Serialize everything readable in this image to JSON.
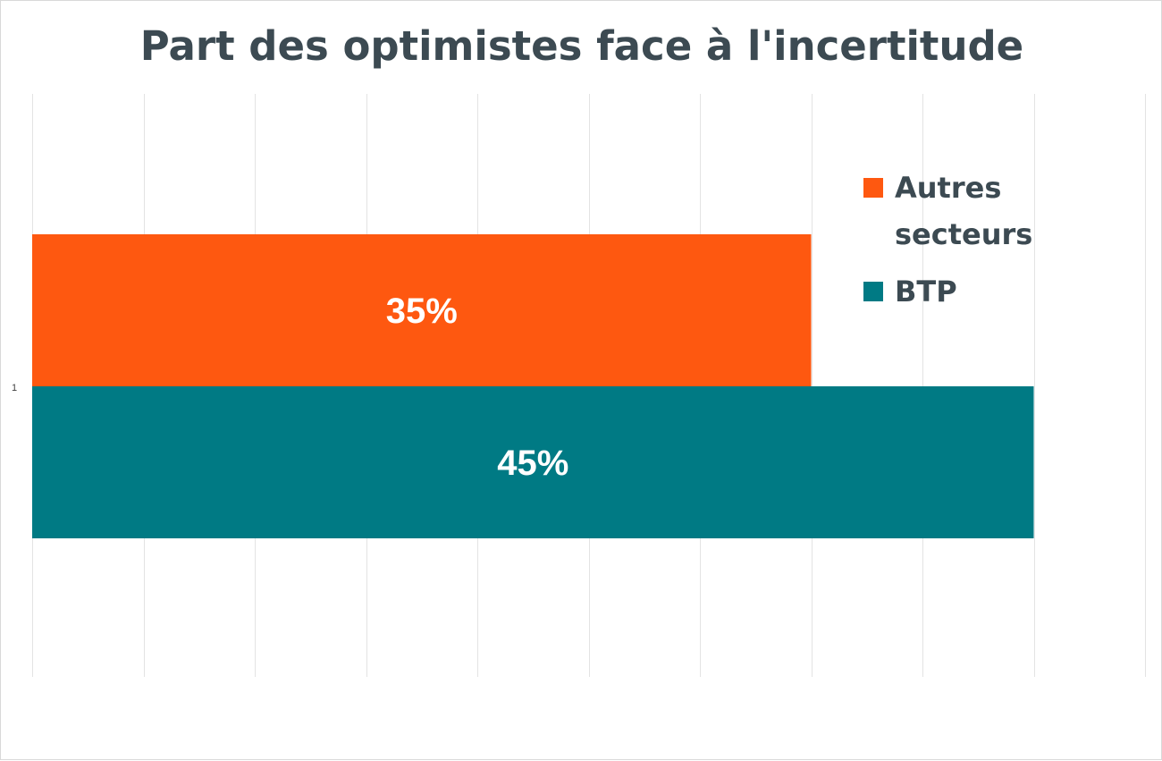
{
  "chart_data": {
    "type": "bar",
    "orientation": "horizontal",
    "title": "Part des optimistes face à l'incertitude",
    "categories": [
      "1"
    ],
    "series": [
      {
        "name": "Autres secteurs",
        "values": [
          35
        ],
        "label": "35%",
        "color": "#fe5810",
        "legend_lines": [
          "Autres",
          "secteurs"
        ]
      },
      {
        "name": "BTP",
        "values": [
          45
        ],
        "label": "45%",
        "color": "#007a84",
        "legend_lines": [
          "BTP"
        ]
      }
    ],
    "xlim": [
      0,
      50
    ],
    "grid_step": 5,
    "xlabel": "",
    "ylabel": "",
    "grid": true,
    "legend_position": "right"
  }
}
